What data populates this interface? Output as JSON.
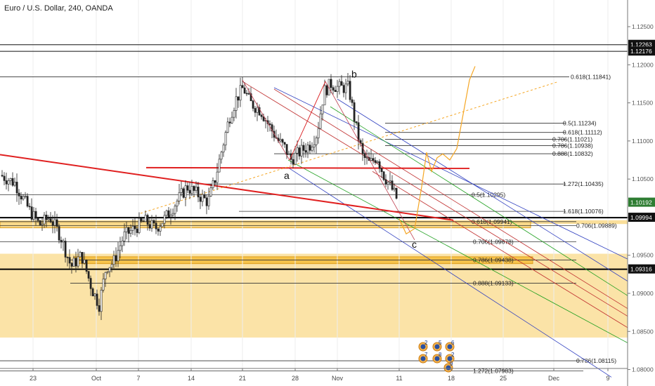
{
  "header": {
    "title": "Euro / U.S. Dollar, 240, OANDA"
  },
  "chart_data": {
    "type": "candlestick",
    "title": "Euro / U.S. Dollar, 240, OANDA",
    "x_tick_labels": [
      "23",
      "Oct",
      "7",
      "14",
      "21",
      "28",
      "Nov",
      "11",
      "18",
      "25",
      "Dec",
      "9"
    ],
    "y_tick_labels": [
      "1.12500",
      "1.12000",
      "1.11500",
      "1.11000",
      "1.10500",
      "1.10000",
      "1.09500",
      "1.09000",
      "1.08500",
      "1.08000"
    ],
    "y_ticks": [
      1.125,
      1.12,
      1.115,
      1.11,
      1.105,
      1.1,
      1.095,
      1.09,
      1.085,
      1.08
    ],
    "ylim": [
      1.0783,
      1.1285
    ],
    "price_labels": [
      {
        "value": 1.12263,
        "label": "1.12263",
        "style": "dark"
      },
      {
        "value": 1.12176,
        "label": "1.12176",
        "style": "dark"
      },
      {
        "value": 1.10192,
        "label": "1.10192",
        "style": "green"
      },
      {
        "value": 1.09994,
        "label": "1.09994",
        "style": "dark"
      },
      {
        "value": 1.09316,
        "label": "1.09316",
        "style": "dark"
      }
    ],
    "fib_levels": [
      {
        "label": "0.618(1.11841)",
        "value": 1.11841
      },
      {
        "label": "0.5(1.11234)",
        "value": 1.11234
      },
      {
        "label": "0.618(1.11112)",
        "value": 1.11112
      },
      {
        "label": "0.706(1.11021)",
        "value": 1.11021
      },
      {
        "label": "0.786(1.10938)",
        "value": 1.10938
      },
      {
        "label": "0.888(1.10832)",
        "value": 1.10832
      },
      {
        "label": "1.272(1.10435)",
        "value": 1.10435
      },
      {
        "label": "0.5(1.10295)",
        "value": 1.10295
      },
      {
        "label": "1.618(1.10076)",
        "value": 1.10076
      },
      {
        "label": "0.618(1.09941)",
        "value": 1.09941
      },
      {
        "label": "0.706(1.09889)",
        "value": 1.09889
      },
      {
        "label": "0.706(1.09678)",
        "value": 1.09678
      },
      {
        "label": "0.786(1.09438)",
        "value": 1.09438
      },
      {
        "label": "0.888(1.09133)",
        "value": 1.09133
      },
      {
        "label": "0.786(1.08115)",
        "value": 1.08115
      },
      {
        "label": "1.272(1.07983)",
        "value": 1.07983
      }
    ],
    "wave_labels": [
      "a",
      "b",
      "c"
    ],
    "event_badges": [
      "2",
      "5",
      "6",
      "7",
      "8",
      "2",
      "9"
    ],
    "colors": {
      "candle": "#222222",
      "support_zone": "#f9d98a",
      "trendline": "#e02020",
      "projection": "#f5a623",
      "pitchfork_blue": "#3040c0",
      "pitchfork_red": "#c03030",
      "pitchfork_green": "#20a020",
      "fib_line": "#333333"
    }
  }
}
